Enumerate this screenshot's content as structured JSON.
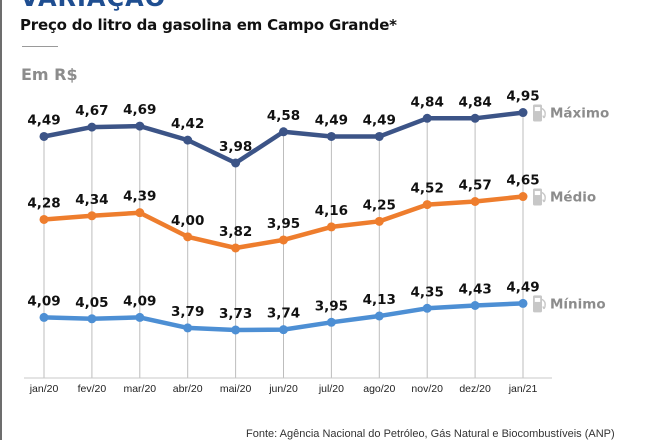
{
  "header": {
    "kicker": "VARIAÇÃO",
    "subtitle": "Preço do litro da gasolina em Campo Grande*",
    "unit": "Em R$"
  },
  "footer": {
    "source": "Fonte: Agência Nacional do Petróleo, Gás Natural e Biocombustíveis (ANP)"
  },
  "chart_data": {
    "type": "line",
    "title": "Preço do litro da gasolina em Campo Grande*",
    "ylabel": "Em R$",
    "xlabel": "",
    "grid": "vertical",
    "legend_placement": "right (inline labels at line ends)",
    "categories": [
      "jan/20",
      "fev/20",
      "mar/20",
      "abr/20",
      "mai/20",
      "jun/20",
      "jul/20",
      "ago/20",
      "nov/20",
      "dez/20",
      "jan/21"
    ],
    "series": [
      {
        "name": "Máximo",
        "color": "#3c5487",
        "icon": "fuel-pump-icon",
        "values": [
          4.49,
          4.67,
          4.69,
          4.42,
          3.98,
          4.58,
          4.49,
          4.49,
          4.84,
          4.84,
          4.95
        ],
        "labels": [
          "4,49",
          "4,67",
          "4,69",
          "4,42",
          "3,98",
          "4,58",
          "4,49",
          "4,49",
          "4,84",
          "4,84",
          "4,95"
        ]
      },
      {
        "name": "Médio",
        "color": "#ee7d2d",
        "icon": "fuel-pump-icon",
        "values": [
          4.28,
          4.34,
          4.39,
          4.0,
          3.82,
          3.95,
          4.16,
          4.25,
          4.52,
          4.57,
          4.65
        ],
        "labels": [
          "4,28",
          "4,34",
          "4,39",
          "4,00",
          "3,82",
          "3,95",
          "4,16",
          "4,25",
          "4,52",
          "4,57",
          "4,65"
        ]
      },
      {
        "name": "Mínimo",
        "color": "#4d8fd4",
        "icon": "fuel-pump-icon",
        "values": [
          4.09,
          4.05,
          4.09,
          3.79,
          3.73,
          3.74,
          3.95,
          4.13,
          4.35,
          4.43,
          4.49
        ],
        "labels": [
          "4,09",
          "4,05",
          "4,09",
          "3,79",
          "3,73",
          "3,74",
          "3,95",
          "4,13",
          "4,35",
          "4,43",
          "4,49"
        ]
      }
    ]
  }
}
